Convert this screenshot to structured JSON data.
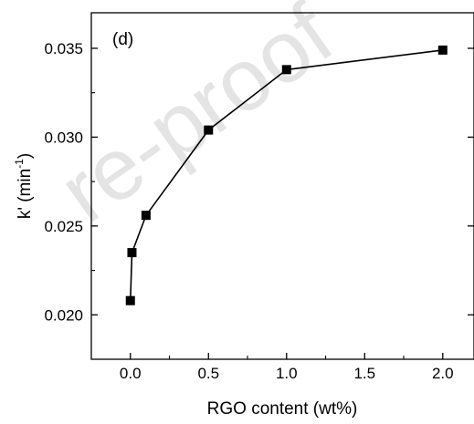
{
  "watermark_text": "re-proof",
  "chart_data": {
    "type": "scatter",
    "panel_label": "(d)",
    "xlabel": "RGO content (wt%)",
    "ylabel_main": "k' (min",
    "ylabel_sup": "-1",
    "ylabel_close": ")",
    "xlim": [
      -0.25,
      2.2
    ],
    "ylim": [
      0.0175,
      0.037
    ],
    "x_ticks": [
      0.0,
      0.5,
      1.0,
      1.5,
      2.0
    ],
    "x_tick_labels": [
      "0.0",
      "0.5",
      "1.0",
      "1.5",
      "2.0"
    ],
    "y_ticks": [
      0.02,
      0.025,
      0.03,
      0.035
    ],
    "y_tick_labels": [
      "0.020",
      "0.025",
      "0.030",
      "0.035"
    ],
    "series": [
      {
        "marker": "square",
        "line": true,
        "color": "#000000",
        "x": [
          0.0,
          0.01,
          0.1,
          0.5,
          1.0,
          2.0
        ],
        "y": [
          0.0208,
          0.0235,
          0.0256,
          0.0304,
          0.0338,
          0.0349
        ]
      }
    ]
  }
}
